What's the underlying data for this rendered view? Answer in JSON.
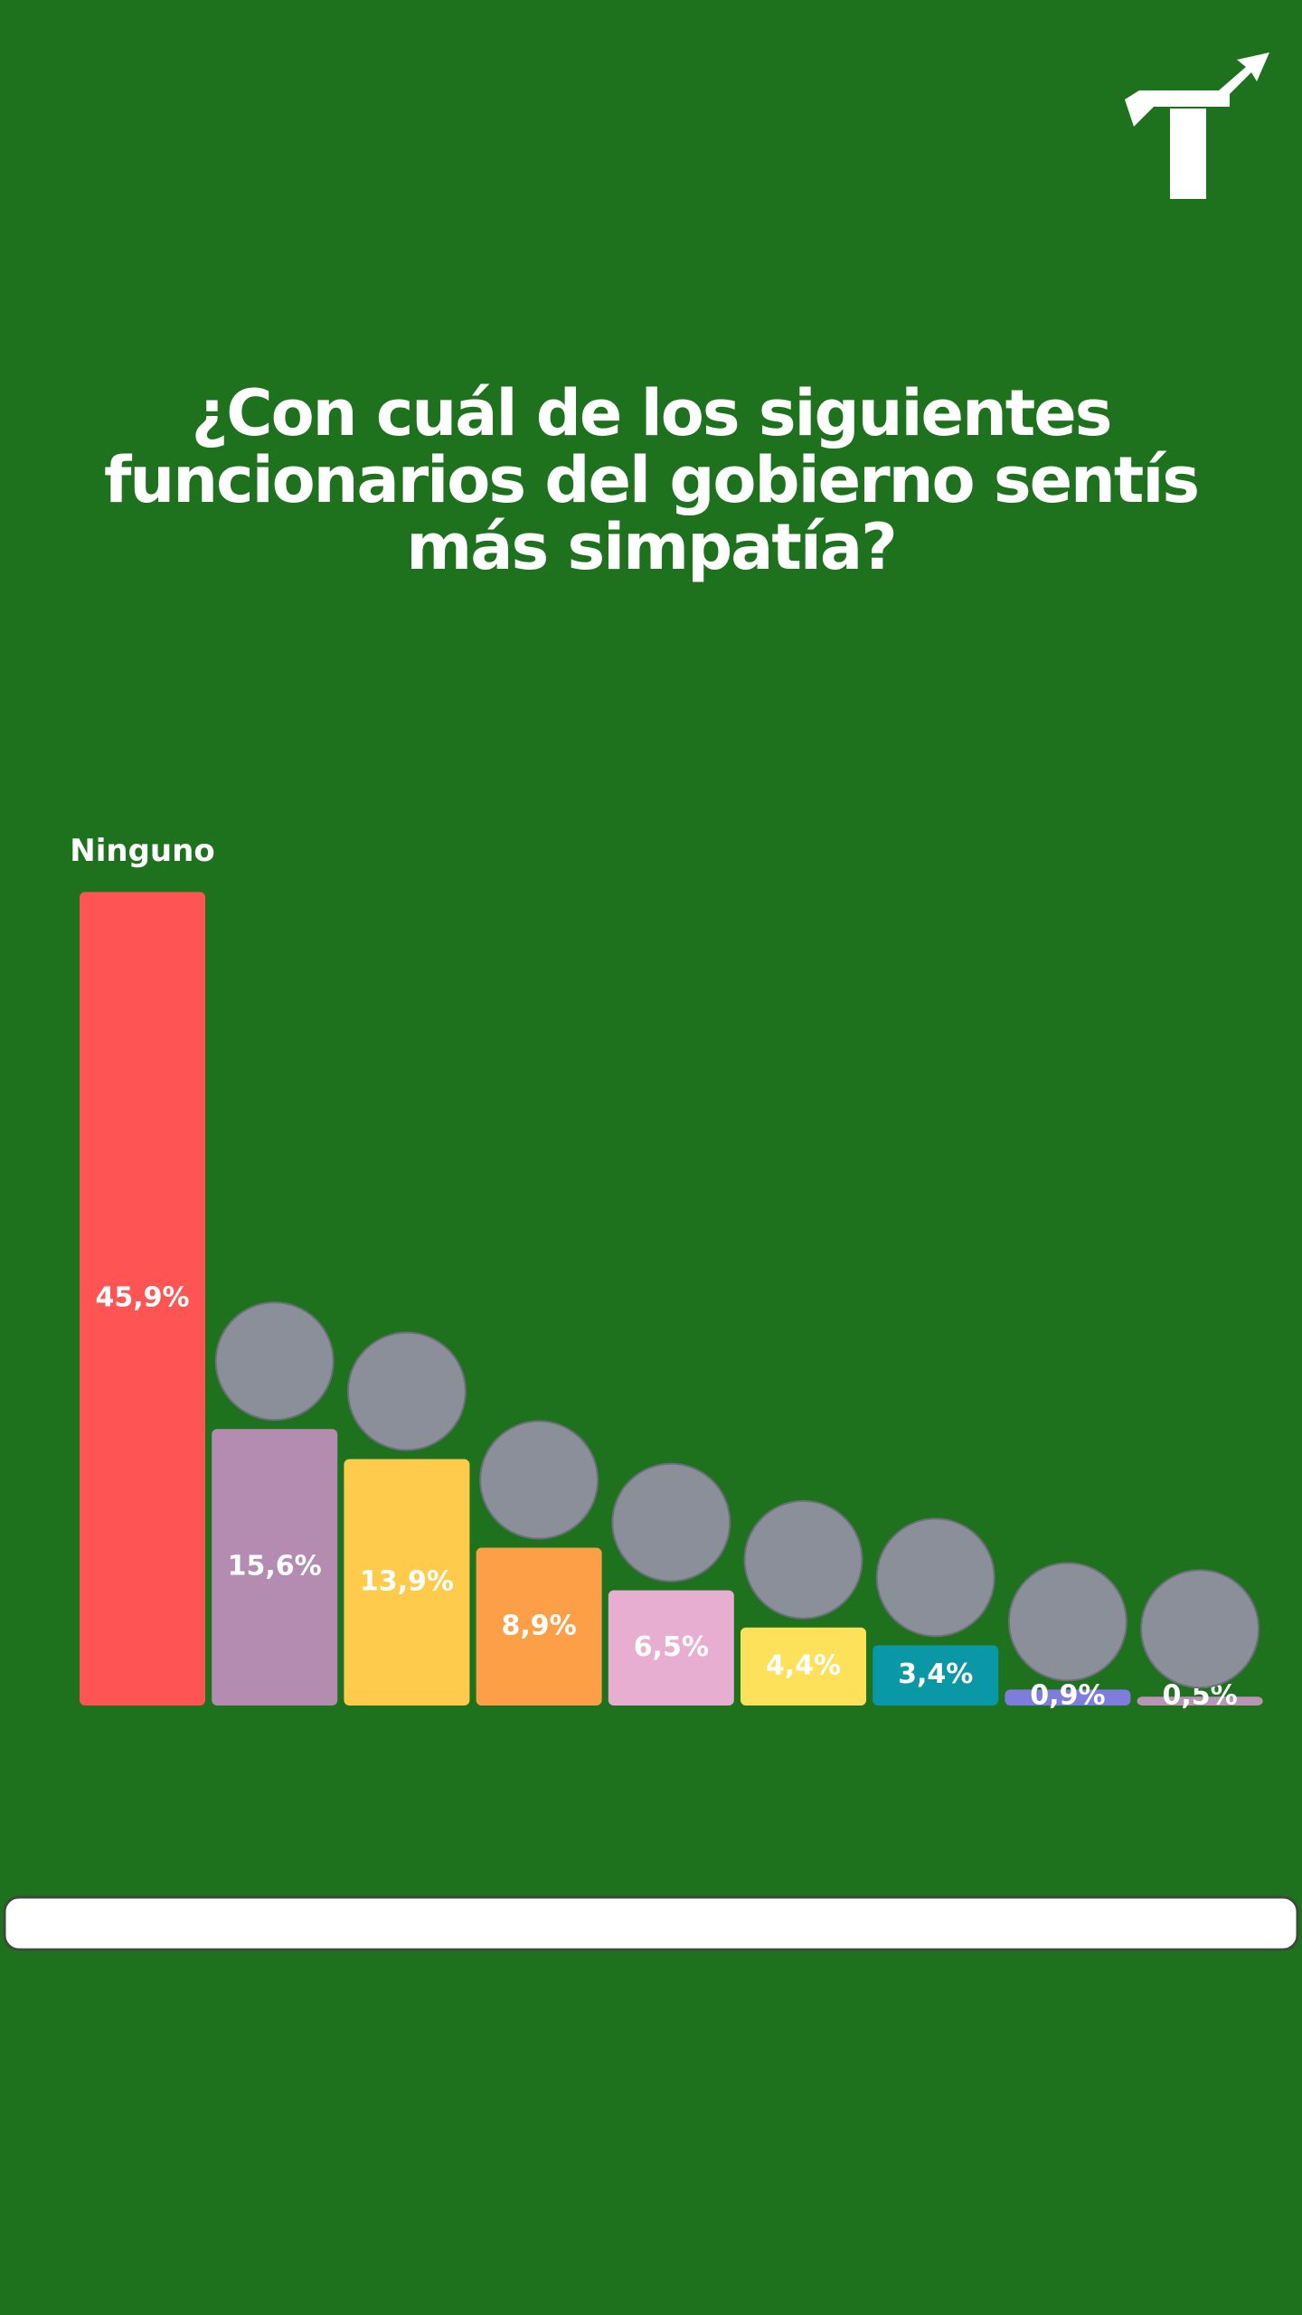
{
  "chart_data": {
    "type": "bar",
    "title": "¿Con cuál de los siguientes\nfuncionarios del gobierno sentís\nmás simpatía?",
    "categories": [
      "Ninguno",
      null,
      null,
      null,
      null,
      null,
      null,
      null,
      null
    ],
    "values": [
      45.9,
      15.6,
      13.9,
      8.9,
      6.5,
      4.4,
      3.4,
      0.9,
      0.5
    ],
    "value_labels": [
      "45,9%",
      "15,6%",
      "13,9%",
      "8,9%",
      "6,5%",
      "4,4%",
      "3,4%",
      "0,9%",
      "0,5%"
    ],
    "colors": [
      "#fe5454",
      "#b48cb2",
      "#fecb4c",
      "#fd9f46",
      "#e8aed1",
      "#fde15a",
      "#0a98a6",
      "#7f7ddc",
      "#b895b5"
    ]
  }
}
